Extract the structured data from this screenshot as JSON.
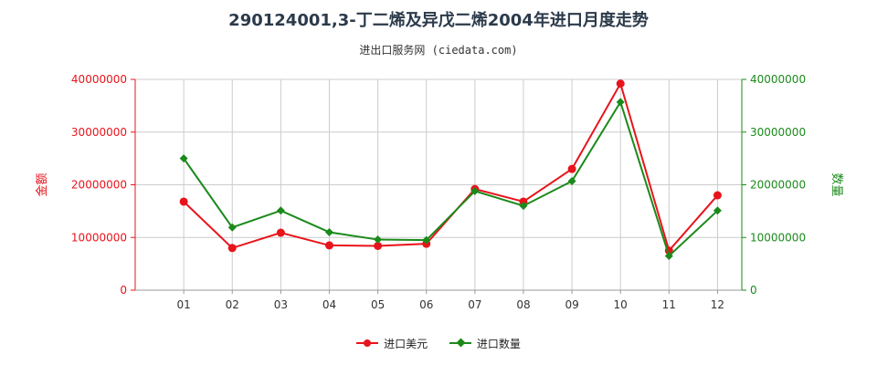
{
  "title": "290124001,3-丁二烯及异戊二烯2004年进口月度走势",
  "subtitle": "进出口服务网 (ciedata.com)",
  "colors": {
    "left_series": "#e8141b",
    "right_series": "#1b8a1b",
    "grid": "#cccccc"
  },
  "legend": {
    "left": "进口美元",
    "right": "进口数量",
    "placement": "bottom-center"
  },
  "chart_data": {
    "type": "line",
    "categories": [
      "01",
      "02",
      "03",
      "04",
      "05",
      "06",
      "07",
      "08",
      "09",
      "10",
      "11",
      "12"
    ],
    "ylabel_left": "金额",
    "ylabel_right": "数量",
    "ylim_left": [
      0,
      40000000
    ],
    "ylim_right": [
      0,
      40000000
    ],
    "yticks_left": [
      "0",
      "10000000",
      "20000000",
      "30000000",
      "40000000"
    ],
    "yticks_right": [
      "0",
      "10000000",
      "20000000",
      "30000000",
      "40000000"
    ],
    "grid": true,
    "series": [
      {
        "name": "进口美元",
        "axis": "left",
        "marker": "circle",
        "values": [
          16800000,
          8000000,
          10900000,
          8500000,
          8400000,
          8800000,
          19200000,
          16800000,
          23000000,
          39200000,
          7500000,
          18000000
        ]
      },
      {
        "name": "进口数量",
        "axis": "right",
        "marker": "diamond",
        "values": [
          25000000,
          11900000,
          15100000,
          11000000,
          9600000,
          9500000,
          18800000,
          16000000,
          20700000,
          35700000,
          6500000,
          15100000
        ]
      }
    ]
  }
}
